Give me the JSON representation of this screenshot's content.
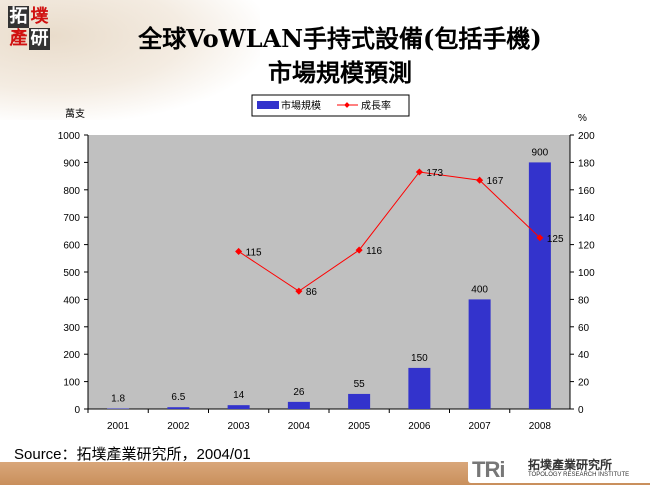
{
  "logo": {
    "chars": [
      "拓",
      "墣",
      "產",
      "研"
    ]
  },
  "title_line1": "全球VoWLAN手持式設備(包括手機)",
  "title_line2": "市場規模預測",
  "source": "Source：拓墣產業研究所，2004/01",
  "footer_logo": {
    "mark": "TRi",
    "name_cn": "拓墣產業研究所",
    "name_en": "TOPOLOGY RESEARCH INSTITUTE"
  },
  "colors": {
    "bar": "#3333cc",
    "line": "#ff0000",
    "band": "#d09a68"
  },
  "chart_data": {
    "type": "bar+line",
    "categories": [
      "2001",
      "2002",
      "2003",
      "2004",
      "2005",
      "2006",
      "2007",
      "2008"
    ],
    "series": [
      {
        "name": "市場規模",
        "type": "bar",
        "axis": "left",
        "values": [
          1.8,
          6.5,
          14,
          26,
          55,
          150,
          400,
          900
        ],
        "labels": [
          "1.8",
          "6.5",
          "14",
          "26",
          "55",
          "150",
          "400",
          "900"
        ]
      },
      {
        "name": "成長率",
        "type": "line",
        "axis": "right",
        "values": [
          null,
          null,
          115,
          86,
          116,
          173,
          167,
          125
        ]
      }
    ],
    "ylabel_left": "萬支",
    "ylabel_right": "%",
    "ylim_left": [
      0,
      1000
    ],
    "yticks_left": [
      0,
      100,
      200,
      300,
      400,
      500,
      600,
      700,
      800,
      900,
      1000
    ],
    "ylim_right": [
      0,
      200
    ],
    "yticks_right": [
      0,
      20,
      40,
      60,
      80,
      100,
      120,
      140,
      160,
      180,
      200
    ],
    "grid": false,
    "legend": "top-center",
    "plot_background": "#c0c0c0"
  }
}
